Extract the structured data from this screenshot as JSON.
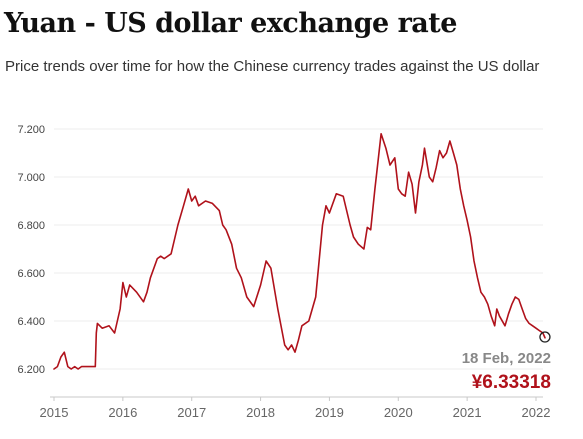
{
  "header": {
    "title": "Yuan - US dollar exchange rate",
    "subtitle": "Price trends over time for how the Chinese currency trades against the US dollar"
  },
  "chart_data": {
    "type": "line",
    "title": "Yuan - US dollar exchange rate",
    "subtitle": "Price trends over time for how the Chinese currency trades against the US dollar",
    "xlabel": "",
    "ylabel": "",
    "xlim": [
      2015.0,
      2022.15
    ],
    "ylim": [
      6.15,
      7.25
    ],
    "x_ticks": [
      2015,
      2016,
      2017,
      2018,
      2019,
      2020,
      2021,
      2022
    ],
    "y_ticks": [
      6.2,
      6.4,
      6.6,
      6.8,
      7.0,
      7.2
    ],
    "y_tick_labels": [
      "6.200",
      "6.400",
      "6.600",
      "6.800",
      "7.000",
      "7.200"
    ],
    "grid": "horizontal",
    "line_color": "#b0121b",
    "series": [
      {
        "x": [
          2015.0,
          2015.05,
          2015.1,
          2015.15,
          2015.2,
          2015.25,
          2015.3,
          2015.35,
          2015.4,
          2015.45,
          2015.5,
          2015.55,
          2015.6,
          2015.615,
          2015.63,
          2015.7,
          2015.8,
          2015.88,
          2015.96,
          2016.0,
          2016.05,
          2016.1,
          2016.2,
          2016.3,
          2016.35,
          2016.4,
          2016.5,
          2016.55,
          2016.6,
          2016.7,
          2016.8,
          2016.88,
          2016.95,
          2017.0,
          2017.05,
          2017.1,
          2017.2,
          2017.3,
          2017.4,
          2017.45,
          2017.5,
          2017.58,
          2017.65,
          2017.72,
          2017.8,
          2017.9,
          2018.0,
          2018.08,
          2018.15,
          2018.25,
          2018.35,
          2018.4,
          2018.45,
          2018.5,
          2018.55,
          2018.6,
          2018.7,
          2018.8,
          2018.85,
          2018.9,
          2018.95,
          2019.0,
          2019.1,
          2019.2,
          2019.3,
          2019.35,
          2019.42,
          2019.5,
          2019.55,
          2019.6,
          2019.66,
          2019.7,
          2019.75,
          2019.82,
          2019.88,
          2019.95,
          2020.0,
          2020.05,
          2020.1,
          2020.15,
          2020.2,
          2020.25,
          2020.3,
          2020.35,
          2020.38,
          2020.45,
          2020.5,
          2020.55,
          2020.6,
          2020.65,
          2020.7,
          2020.75,
          2020.8,
          2020.85,
          2020.9,
          2020.95,
          2021.0,
          2021.05,
          2021.1,
          2021.15,
          2021.2,
          2021.25,
          2021.3,
          2021.35,
          2021.4,
          2021.43,
          2021.47,
          2021.55,
          2021.6,
          2021.65,
          2021.7,
          2021.75,
          2021.8,
          2021.85,
          2021.9,
          2021.95,
          2022.0,
          2022.05,
          2022.1,
          2022.13
        ],
        "values": [
          6.2,
          6.21,
          6.25,
          6.27,
          6.21,
          6.2,
          6.21,
          6.2,
          6.21,
          6.21,
          6.21,
          6.21,
          6.21,
          6.35,
          6.39,
          6.37,
          6.38,
          6.35,
          6.45,
          6.56,
          6.5,
          6.55,
          6.52,
          6.48,
          6.52,
          6.58,
          6.66,
          6.67,
          6.66,
          6.68,
          6.8,
          6.88,
          6.95,
          6.9,
          6.92,
          6.88,
          6.9,
          6.89,
          6.86,
          6.8,
          6.78,
          6.72,
          6.62,
          6.58,
          6.5,
          6.46,
          6.55,
          6.65,
          6.62,
          6.45,
          6.3,
          6.28,
          6.3,
          6.27,
          6.32,
          6.38,
          6.4,
          6.5,
          6.65,
          6.8,
          6.88,
          6.85,
          6.93,
          6.92,
          6.8,
          6.75,
          6.72,
          6.7,
          6.79,
          6.78,
          6.95,
          7.05,
          7.18,
          7.12,
          7.05,
          7.08,
          6.95,
          6.93,
          6.92,
          7.02,
          6.97,
          6.85,
          6.98,
          7.05,
          7.12,
          7.0,
          6.98,
          7.04,
          7.11,
          7.08,
          7.1,
          7.15,
          7.1,
          7.05,
          6.95,
          6.88,
          6.82,
          6.75,
          6.65,
          6.58,
          6.52,
          6.5,
          6.47,
          6.42,
          6.38,
          6.45,
          6.42,
          6.38,
          6.43,
          6.47,
          6.5,
          6.49,
          6.45,
          6.41,
          6.39,
          6.38,
          6.37,
          6.36,
          6.35,
          6.33
        ]
      }
    ],
    "annotation": {
      "date": "18 Feb, 2022",
      "value": "¥6.33318",
      "x": 2022.13,
      "y": 6.33318
    }
  }
}
